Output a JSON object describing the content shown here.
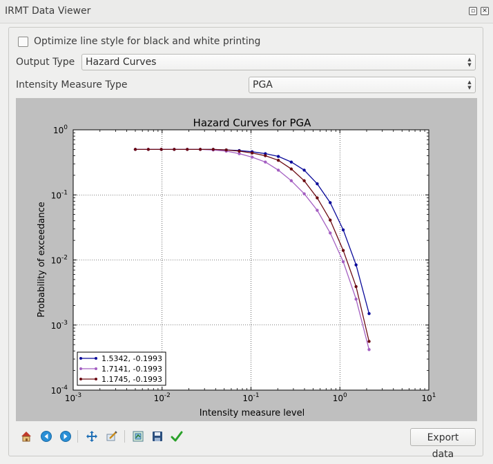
{
  "window": {
    "title": "IRMT Data Viewer"
  },
  "form": {
    "bw_checkbox_label": "Optimize line style for black and white printing",
    "bw_checked": false,
    "output_type_label": "Output Type",
    "output_type_value": "Hazard Curves",
    "imt_label": "Intensity Measure Type",
    "imt_value": "PGA"
  },
  "toolbar": {
    "icons": [
      "home-icon",
      "back-icon",
      "forward-icon",
      "pan-icon",
      "configure-subplots-icon",
      "edit-axis-icon",
      "save-icon",
      "check-icon"
    ],
    "export_label": "Export data"
  },
  "colors": {
    "series1": "#0a0a9a",
    "series2": "#a45fc2",
    "series3": "#6b0a12"
  },
  "chart_data": {
    "type": "line",
    "title": "Hazard Curves for PGA",
    "xlabel": "Intensity measure level",
    "ylabel": "Probability of exceedance",
    "xscale": "log",
    "yscale": "log",
    "xlim": [
      0.001,
      10
    ],
    "ylim": [
      0.0001,
      1
    ],
    "grid": true,
    "legend_position": "bottom-left",
    "x_ticks": [
      {
        "base": "10",
        "exp": "-3"
      },
      {
        "base": "10",
        "exp": "-2"
      },
      {
        "base": "10",
        "exp": "-1"
      },
      {
        "base": "10",
        "exp": "0"
      },
      {
        "base": "10",
        "exp": "1"
      }
    ],
    "y_ticks": [
      {
        "base": "10",
        "exp": "-4"
      },
      {
        "base": "10",
        "exp": "-3"
      },
      {
        "base": "10",
        "exp": "-2"
      },
      {
        "base": "10",
        "exp": "-1"
      },
      {
        "base": "10",
        "exp": "0"
      }
    ],
    "x": [
      0.005,
      0.007,
      0.0098,
      0.0137,
      0.0192,
      0.0269,
      0.0376,
      0.0527,
      0.0738,
      0.103,
      0.145,
      0.203,
      0.284,
      0.397,
      0.556,
      0.778,
      1.09,
      1.52,
      2.13
    ],
    "series": [
      {
        "name": "1.5342, -0.1993",
        "values": [
          0.5,
          0.5,
          0.5,
          0.5,
          0.5,
          0.5,
          0.5,
          0.49,
          0.48,
          0.46,
          0.43,
          0.39,
          0.32,
          0.24,
          0.148,
          0.076,
          0.029,
          0.0084,
          0.0015
        ]
      },
      {
        "name": "1.7141, -0.1993",
        "values": [
          0.5,
          0.5,
          0.5,
          0.5,
          0.5,
          0.5,
          0.49,
          0.47,
          0.43,
          0.38,
          0.32,
          0.24,
          0.165,
          0.104,
          0.058,
          0.026,
          0.0094,
          0.0025,
          0.00042
        ]
      },
      {
        "name": "1.1745, -0.1993",
        "values": [
          0.5,
          0.5,
          0.5,
          0.5,
          0.5,
          0.5,
          0.5,
          0.49,
          0.47,
          0.44,
          0.4,
          0.34,
          0.25,
          0.165,
          0.09,
          0.041,
          0.014,
          0.0039,
          0.00056
        ]
      }
    ]
  }
}
